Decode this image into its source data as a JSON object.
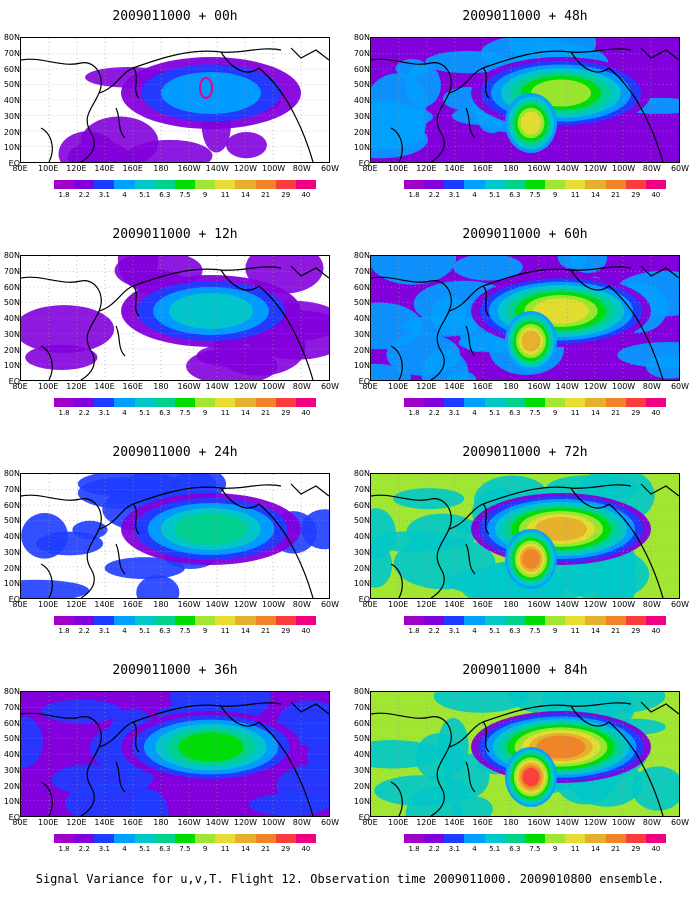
{
  "panels": [
    {
      "title": "2009011000 + 00h",
      "intensity": 0
    },
    {
      "title": "2009011000 + 48h",
      "intensity": 4
    },
    {
      "title": "2009011000 + 12h",
      "intensity": 1
    },
    {
      "title": "2009011000 + 60h",
      "intensity": 5
    },
    {
      "title": "2009011000 + 24h",
      "intensity": 2
    },
    {
      "title": "2009011000 + 72h",
      "intensity": 6
    },
    {
      "title": "2009011000 + 36h",
      "intensity": 3
    },
    {
      "title": "2009011000 + 84h",
      "intensity": 7
    }
  ],
  "lat_labels": [
    "80N",
    "70N",
    "60N",
    "50N",
    "40N",
    "30N",
    "20N",
    "10N",
    "EQ"
  ],
  "lon_labels": [
    "80E",
    "100E",
    "120E",
    "140E",
    "160E",
    "180",
    "160W",
    "140W",
    "120W",
    "100W",
    "80W",
    "60W"
  ],
  "colorbar": {
    "labels": [
      "1.8",
      "2.2",
      "3.1",
      "4",
      "5.1",
      "6.3",
      "7.5",
      "9",
      "11",
      "14",
      "21",
      "29",
      "40"
    ],
    "colors": [
      "#a000c8",
      "#8200dc",
      "#1e3cff",
      "#00a0ff",
      "#00c8c8",
      "#00d28c",
      "#00dc00",
      "#a0e632",
      "#e6dc32",
      "#e6af2d",
      "#f08228",
      "#fa3c3c",
      "#f00082"
    ]
  },
  "caption": "Signal Variance for u,v,T. Flight 12. Observation time 2009011000. 2009010800 ensemble."
}
